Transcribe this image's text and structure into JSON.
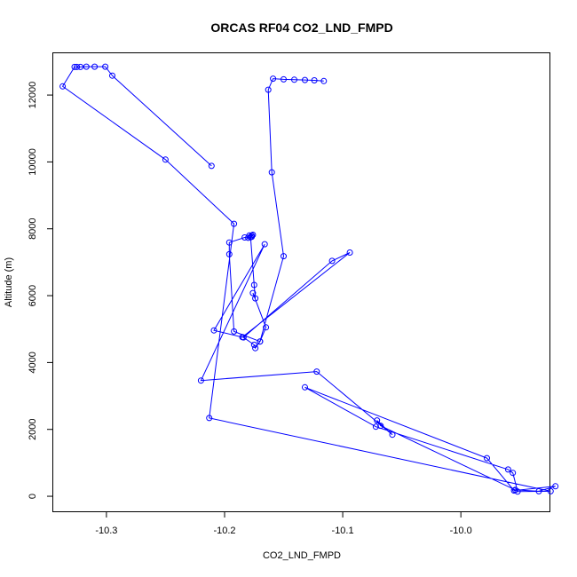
{
  "chart_data": {
    "type": "line",
    "title": "ORCAS RF04 CO2_LND_FMPD",
    "xlabel": "CO2_LND_FMPD",
    "ylabel": "Altitude (m)",
    "xlim": [
      -10.345,
      -9.925
    ],
    "ylim": [
      -450,
      13250
    ],
    "xticks": [
      -10.3,
      -10.2,
      -10.1,
      -10.0
    ],
    "xtick_labels": [
      "-10.3",
      "-10.2",
      "-10.1",
      "-10.0"
    ],
    "yticks": [
      0,
      2000,
      4000,
      6000,
      8000,
      10000,
      12000
    ],
    "ytick_labels": [
      "0",
      "2000",
      "4000",
      "6000",
      "8000",
      "10000",
      "12000"
    ],
    "grid": false,
    "legend": "none",
    "series": [
      {
        "color": "#0000ff",
        "marker": "open-circle",
        "x": [
          -10.116,
          -10.124,
          -10.132,
          -10.141,
          -10.15,
          -10.159,
          -10.163,
          -10.16,
          -10.15,
          -10.17,
          -10.165,
          -10.176,
          -10.174,
          -10.175,
          -10.178,
          -10.176,
          -10.179,
          -10.177,
          -10.177,
          -10.178,
          -10.18,
          -10.183,
          -10.196,
          -10.196,
          -10.192,
          -10.17,
          -10.174,
          -10.175,
          -10.184,
          -10.109,
          -10.094,
          -10.185,
          -10.209,
          -10.166,
          -10.22,
          -10.122,
          -10.058,
          -10.071,
          -10.068,
          -9.954,
          -9.934,
          -9.92,
          -9.955,
          -9.978,
          -10.132,
          -10.072,
          -9.96,
          -9.956,
          -9.952,
          -9.924,
          -10.213,
          -10.192,
          -10.25,
          -10.337,
          -10.327,
          -10.325,
          -10.322,
          -10.317,
          -10.31,
          -10.301,
          -10.295,
          -10.211
        ],
        "y": [
          12420,
          12440,
          12450,
          12460,
          12470,
          12490,
          12160,
          9690,
          7180,
          4630,
          5050,
          6080,
          5920,
          6320,
          7750,
          7820,
          7800,
          7760,
          7800,
          7750,
          7730,
          7740,
          7590,
          7240,
          4930,
          4630,
          4430,
          4530,
          4750,
          7040,
          7290,
          4760,
          4960,
          7540,
          3460,
          3730,
          1840,
          2270,
          2110,
          190,
          150,
          300,
          170,
          1140,
          3260,
          2080,
          800,
          700,
          140,
          150,
          2340,
          8150,
          10070,
          12260,
          12840,
          12840,
          12840,
          12850,
          12850,
          12850,
          12580,
          9880
        ]
      }
    ]
  }
}
